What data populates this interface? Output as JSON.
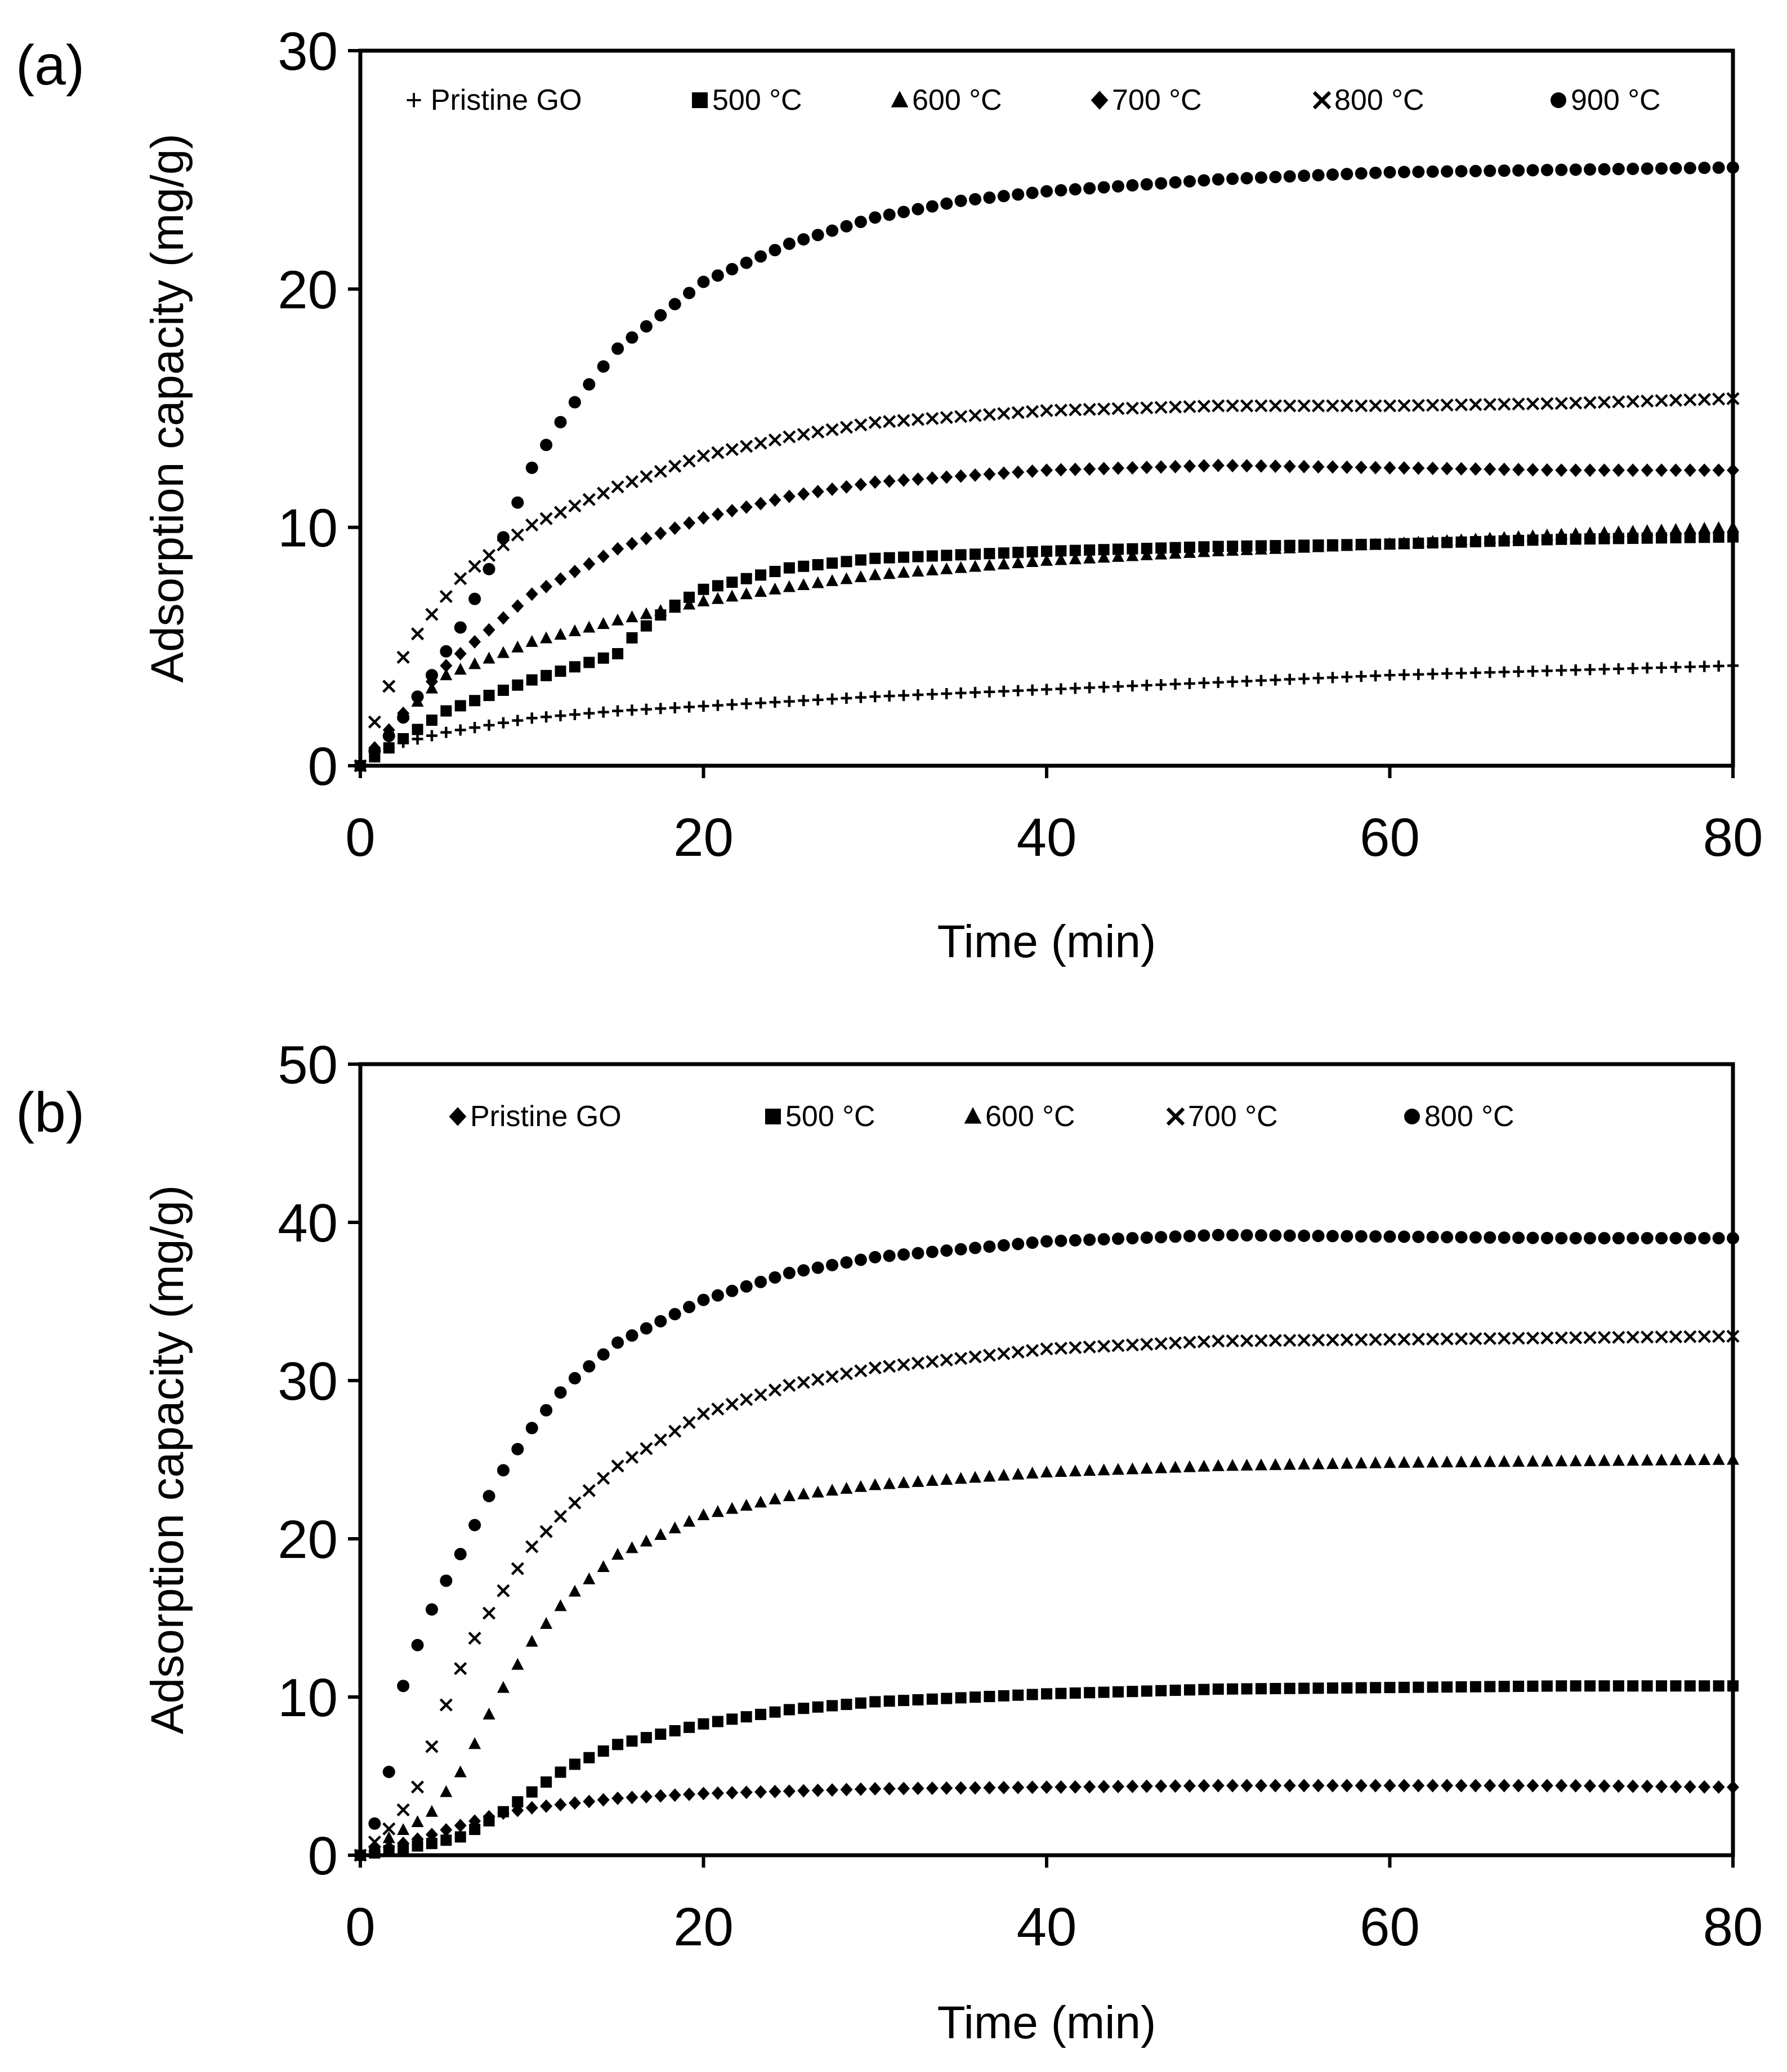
{
  "chart_data": [
    {
      "type": "scatter",
      "panel_label": "(a)",
      "xlabel": "Time (min)",
      "ylabel": "Adsorption capacity (mg/g)",
      "xlim": [
        0,
        80
      ],
      "ylim": [
        0,
        30
      ],
      "xticks": [
        0,
        20,
        40,
        60,
        80
      ],
      "yticks": [
        0,
        10,
        20,
        30
      ],
      "legend_position": "top",
      "series": [
        {
          "name": "+ Pristine GO",
          "marker": "plus",
          "x_max": 80,
          "points": [
            [
              0,
              0
            ],
            [
              2,
              0.9
            ],
            [
              5,
              1.4
            ],
            [
              10,
              2.0
            ],
            [
              15,
              2.3
            ],
            [
              20,
              2.5
            ],
            [
              30,
              2.9
            ],
            [
              40,
              3.2
            ],
            [
              50,
              3.5
            ],
            [
              60,
              3.8
            ],
            [
              70,
              4.0
            ],
            [
              80,
              4.2
            ]
          ]
        },
        {
          "name": "500 °C",
          "marker": "square",
          "x_max": 80,
          "points": [
            [
              0,
              0
            ],
            [
              2,
              0.9
            ],
            [
              5,
              2.3
            ],
            [
              10,
              3.6
            ],
            [
              15,
              4.7
            ],
            [
              16,
              5.5
            ],
            [
              18,
              6.6
            ],
            [
              20,
              7.4
            ],
            [
              25,
              8.3
            ],
            [
              30,
              8.7
            ],
            [
              40,
              9.0
            ],
            [
              50,
              9.2
            ],
            [
              60,
              9.3
            ],
            [
              70,
              9.5
            ],
            [
              80,
              9.6
            ]
          ]
        },
        {
          "name": "600 °C",
          "marker": "triangle",
          "x_max": 80,
          "points": [
            [
              0,
              0
            ],
            [
              2,
              1.8
            ],
            [
              5,
              3.8
            ],
            [
              10,
              5.2
            ],
            [
              15,
              6.1
            ],
            [
              20,
              6.9
            ],
            [
              25,
              7.5
            ],
            [
              30,
              8.0
            ],
            [
              40,
              8.6
            ],
            [
              50,
              9.0
            ],
            [
              60,
              9.3
            ],
            [
              70,
              9.7
            ],
            [
              80,
              10.0
            ]
          ]
        },
        {
          "name": "700 °C",
          "marker": "diamond",
          "x_max": 80,
          "points": [
            [
              0,
              0
            ],
            [
              2,
              1.8
            ],
            [
              5,
              4.2
            ],
            [
              10,
              7.2
            ],
            [
              15,
              9.1
            ],
            [
              20,
              10.4
            ],
            [
              25,
              11.3
            ],
            [
              30,
              11.9
            ],
            [
              40,
              12.4
            ],
            [
              50,
              12.6
            ],
            [
              60,
              12.5
            ],
            [
              70,
              12.4
            ],
            [
              80,
              12.4
            ]
          ]
        },
        {
          "name": "800 °C",
          "marker": "x",
          "x_max": 80,
          "points": [
            [
              0,
              0
            ],
            [
              1,
              2.2
            ],
            [
              2,
              3.9
            ],
            [
              3,
              5.2
            ],
            [
              4,
              6.2
            ],
            [
              5,
              7.1
            ],
            [
              6,
              8.0
            ],
            [
              8,
              9.1
            ],
            [
              10,
              10.1
            ],
            [
              15,
              11.7
            ],
            [
              20,
              13.0
            ],
            [
              25,
              13.8
            ],
            [
              30,
              14.4
            ],
            [
              40,
              14.9
            ],
            [
              50,
              15.1
            ],
            [
              60,
              15.1
            ],
            [
              70,
              15.2
            ],
            [
              80,
              15.4
            ]
          ]
        },
        {
          "name": "900 °C",
          "marker": "circle",
          "x_max": 80,
          "points": [
            [
              0,
              0
            ],
            [
              2,
              1.5
            ],
            [
              4,
              3.6
            ],
            [
              6,
              6.0
            ],
            [
              8,
              9.0
            ],
            [
              10,
              12.5
            ],
            [
              12,
              14.8
            ],
            [
              15,
              17.5
            ],
            [
              20,
              20.3
            ],
            [
              25,
              21.9
            ],
            [
              30,
              23.0
            ],
            [
              35,
              23.7
            ],
            [
              40,
              24.1
            ],
            [
              50,
              24.6
            ],
            [
              60,
              24.9
            ],
            [
              70,
              25.0
            ],
            [
              80,
              25.1
            ]
          ]
        }
      ]
    },
    {
      "type": "scatter",
      "panel_label": "(b)",
      "xlabel": "Time (min)",
      "ylabel": "Adsorption capacity (mg/g)",
      "xlim": [
        0,
        80
      ],
      "ylim": [
        0,
        50
      ],
      "xticks": [
        0,
        20,
        40,
        60,
        80
      ],
      "yticks": [
        0,
        10,
        20,
        30,
        40,
        50
      ],
      "legend_position": "top",
      "series": [
        {
          "name": "Pristine GO",
          "marker": "diamond",
          "x_max": 80,
          "points": [
            [
              0,
              0
            ],
            [
              3,
              0.9
            ],
            [
              5,
              1.6
            ],
            [
              8,
              2.6
            ],
            [
              10,
              3.0
            ],
            [
              15,
              3.6
            ],
            [
              20,
              3.9
            ],
            [
              30,
              4.2
            ],
            [
              40,
              4.3
            ],
            [
              50,
              4.4
            ],
            [
              60,
              4.4
            ],
            [
              70,
              4.4
            ],
            [
              80,
              4.3
            ]
          ]
        },
        {
          "name": "500 °C",
          "marker": "square",
          "x_max": 80,
          "points": [
            [
              0,
              0
            ],
            [
              4,
              0.7
            ],
            [
              6,
              1.2
            ],
            [
              8,
              2.5
            ],
            [
              10,
              4.0
            ],
            [
              12,
              5.5
            ],
            [
              15,
              7.0
            ],
            [
              20,
              8.3
            ],
            [
              25,
              9.2
            ],
            [
              30,
              9.7
            ],
            [
              40,
              10.2
            ],
            [
              50,
              10.5
            ],
            [
              60,
              10.6
            ],
            [
              70,
              10.7
            ],
            [
              80,
              10.7
            ]
          ]
        },
        {
          "name": "600 °C",
          "marker": "triangle",
          "x_max": 80,
          "points": [
            [
              0,
              0
            ],
            [
              2,
              1.3
            ],
            [
              4,
              2.5
            ],
            [
              5,
              4.0
            ],
            [
              6,
              5.5
            ],
            [
              7,
              7.8
            ],
            [
              8,
              10.0
            ],
            [
              10,
              13.5
            ],
            [
              12,
              16.2
            ],
            [
              15,
              19.0
            ],
            [
              20,
              21.5
            ],
            [
              25,
              22.7
            ],
            [
              30,
              23.4
            ],
            [
              40,
              24.2
            ],
            [
              50,
              24.6
            ],
            [
              60,
              24.8
            ],
            [
              70,
              24.9
            ],
            [
              80,
              25.0
            ]
          ]
        },
        {
          "name": "700 °C",
          "marker": "x",
          "x_max": 80,
          "points": [
            [
              0,
              0
            ],
            [
              2,
              2.0
            ],
            [
              3.5,
              4.6
            ],
            [
              4.5,
              8.0
            ],
            [
              5.5,
              11.0
            ],
            [
              6.5,
              13.4
            ],
            [
              7.5,
              15.3
            ],
            [
              8.5,
              17.0
            ],
            [
              10,
              19.5
            ],
            [
              12,
              21.8
            ],
            [
              15,
              24.6
            ],
            [
              20,
              27.9
            ],
            [
              25,
              29.7
            ],
            [
              30,
              30.8
            ],
            [
              40,
              32.0
            ],
            [
              50,
              32.5
            ],
            [
              60,
              32.6
            ],
            [
              70,
              32.7
            ],
            [
              80,
              32.8
            ]
          ]
        },
        {
          "name": "800 °C",
          "marker": "circle",
          "x_max": 80,
          "points": [
            [
              0,
              0
            ],
            [
              1,
              2.4
            ],
            [
              2,
              6.7
            ],
            [
              2.5,
              10.7
            ],
            [
              3.5,
              13.8
            ],
            [
              4.5,
              16.4
            ],
            [
              5.5,
              18.3
            ],
            [
              6.5,
              20.5
            ],
            [
              8,
              23.8
            ],
            [
              10,
              27.0
            ],
            [
              12,
              29.7
            ],
            [
              15,
              32.4
            ],
            [
              20,
              35.1
            ],
            [
              25,
              36.8
            ],
            [
              30,
              37.8
            ],
            [
              40,
              38.8
            ],
            [
              50,
              39.2
            ],
            [
              60,
              39.1
            ],
            [
              70,
              39.0
            ],
            [
              80,
              39.0
            ]
          ]
        }
      ]
    }
  ]
}
